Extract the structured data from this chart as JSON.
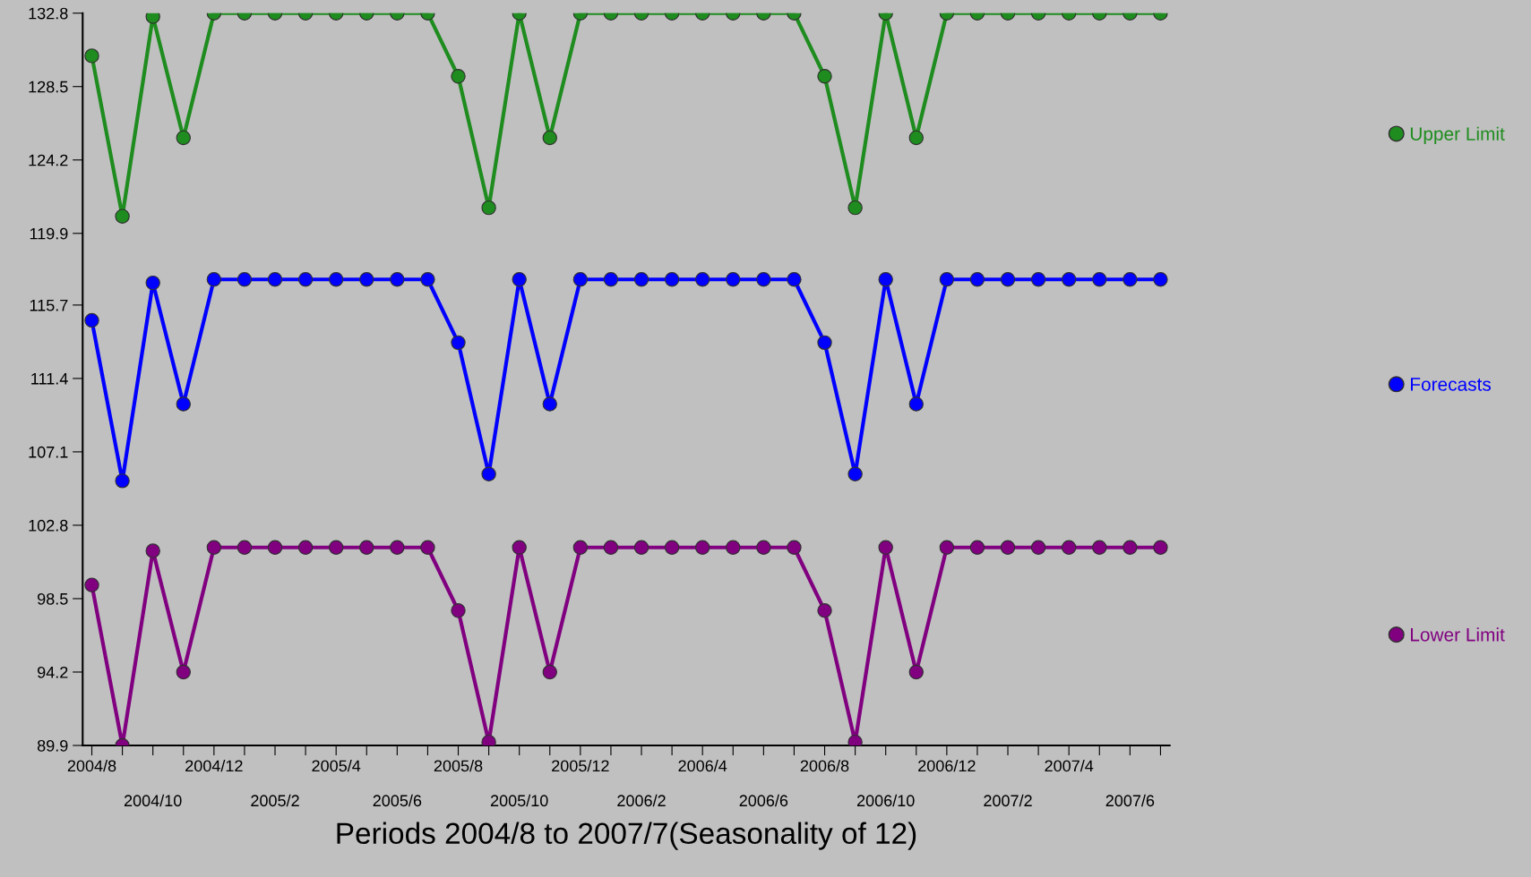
{
  "chart_data": {
    "type": "line",
    "xlabel": "Periods 2004/8 to 2007/7(Seasonality of 12)",
    "categories": [
      "2004/8",
      null,
      "2004/10",
      null,
      "2004/12",
      null,
      "2005/2",
      null,
      "2005/4",
      null,
      "2005/6",
      null,
      "2005/8",
      null,
      "2005/10",
      null,
      "2005/12",
      null,
      "2006/2",
      null,
      "2006/4",
      null,
      "2006/6",
      null,
      "2006/8",
      null,
      "2006/10",
      null,
      "2006/12",
      null,
      "2007/2",
      null,
      "2007/4",
      null,
      "2007/6",
      null
    ],
    "series": [
      {
        "name": "Upper Limit",
        "color": "#1e8c1e",
        "values": [
          130.3,
          120.9,
          132.6,
          125.5,
          132.8,
          132.8,
          132.8,
          132.8,
          132.8,
          132.8,
          132.8,
          132.8,
          129.1,
          121.4,
          132.8,
          125.5,
          132.8,
          132.8,
          132.8,
          132.8,
          132.8,
          132.8,
          132.8,
          132.8,
          129.1,
          121.4,
          132.8,
          125.5,
          132.8,
          132.8,
          132.8,
          132.8,
          132.8,
          132.8,
          132.8,
          132.8
        ]
      },
      {
        "name": "Forecasts",
        "color": "#0000ff",
        "values": [
          114.8,
          105.4,
          117.0,
          109.9,
          117.2,
          117.2,
          117.2,
          117.2,
          117.2,
          117.2,
          117.2,
          117.2,
          113.5,
          105.8,
          117.2,
          109.9,
          117.2,
          117.2,
          117.2,
          117.2,
          117.2,
          117.2,
          117.2,
          117.2,
          113.5,
          105.8,
          117.2,
          109.9,
          117.2,
          117.2,
          117.2,
          117.2,
          117.2,
          117.2,
          117.2,
          117.2
        ]
      },
      {
        "name": "Lower Limit",
        "color": "#800080",
        "values": [
          99.3,
          89.9,
          101.3,
          94.2,
          101.5,
          101.5,
          101.5,
          101.5,
          101.5,
          101.5,
          101.5,
          101.5,
          97.8,
          90.1,
          101.5,
          94.2,
          101.5,
          101.5,
          101.5,
          101.5,
          101.5,
          101.5,
          101.5,
          101.5,
          97.8,
          90.1,
          101.5,
          94.2,
          101.5,
          101.5,
          101.5,
          101.5,
          101.5,
          101.5,
          101.5,
          101.5
        ]
      }
    ],
    "ylim": [
      89.9,
      132.8
    ],
    "yticks": [
      89.9,
      94.2,
      98.5,
      102.8,
      107.1,
      111.4,
      115.7,
      119.9,
      124.2,
      128.5,
      132.8
    ],
    "marker": "circle",
    "line_style": "solid",
    "grid": false,
    "legend": "right"
  }
}
